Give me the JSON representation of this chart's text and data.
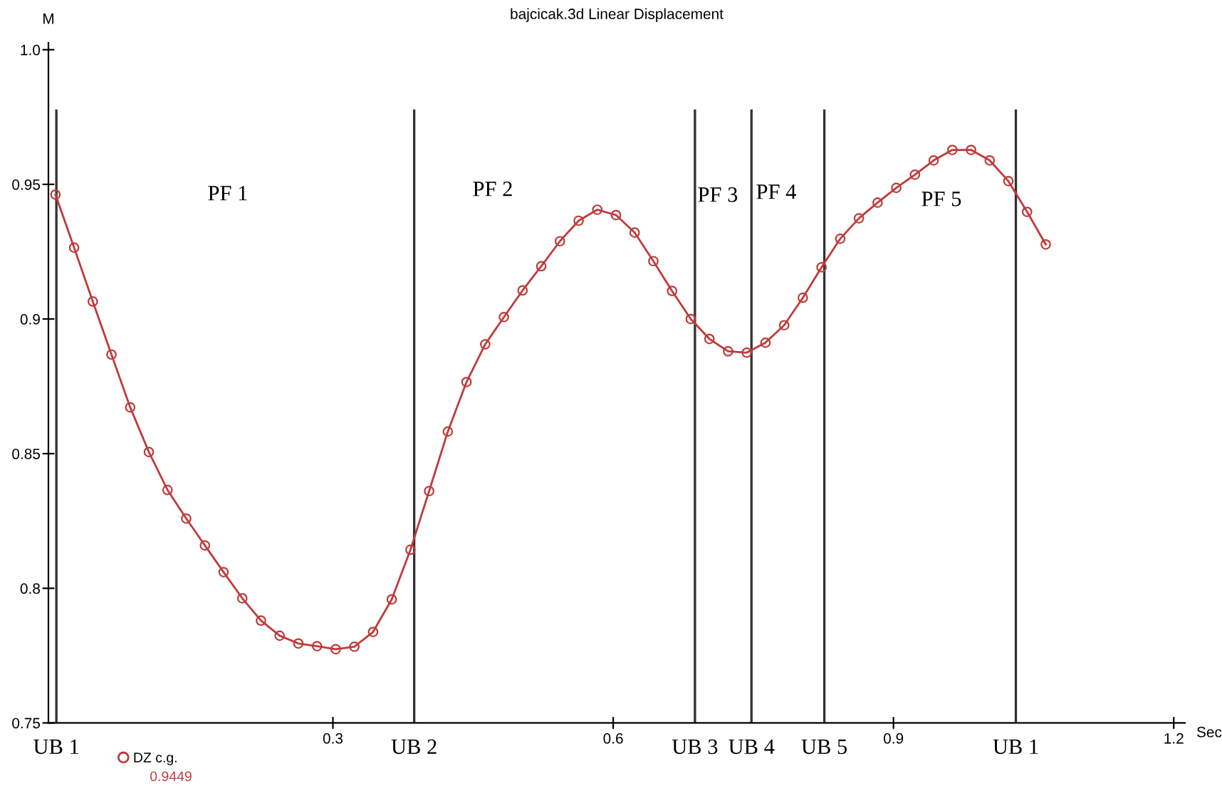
{
  "chart_data": {
    "type": "line",
    "title": "bajcicak.3d Linear Displacement",
    "xlabel": "Sec",
    "ylabel": "M",
    "xlim": [
      -0.0045,
      1.212
    ],
    "ylim": [
      0.75,
      1.0026
    ],
    "xticks": [
      0.3,
      0.6,
      0.9,
      1.2
    ],
    "yticks": [
      0.75,
      0.8,
      0.85,
      0.9,
      0.95,
      {
        "value": 1.0,
        "label": "1.0"
      }
    ],
    "marker": "circle",
    "line_style": "solid",
    "grid": false,
    "legend": "bottom left",
    "series": [
      {
        "name": "DZ c.g.",
        "color": "#c03a3a",
        "x": [
          0.003,
          0.023,
          0.043,
          0.063,
          0.083,
          0.103,
          0.123,
          0.143,
          0.163,
          0.183,
          0.203,
          0.223,
          0.243,
          0.263,
          0.283,
          0.303,
          0.323,
          0.343,
          0.363,
          0.383,
          0.403,
          0.423,
          0.443,
          0.463,
          0.483,
          0.503,
          0.523,
          0.543,
          0.563,
          0.583,
          0.603,
          0.623,
          0.643,
          0.663,
          0.683,
          0.703,
          0.723,
          0.743,
          0.763,
          0.783,
          0.803,
          0.823,
          0.843,
          0.863,
          0.883,
          0.903,
          0.923,
          0.943,
          0.963,
          0.983,
          1.003,
          1.023,
          1.043,
          1.063
        ],
        "values": [
          0.9462,
          0.9265,
          0.9065,
          0.8868,
          0.8672,
          0.8506,
          0.8365,
          0.8259,
          0.8159,
          0.806,
          0.7963,
          0.788,
          0.7824,
          0.7795,
          0.7785,
          0.7774,
          0.7783,
          0.7838,
          0.7959,
          0.8143,
          0.8361,
          0.8582,
          0.8766,
          0.8906,
          0.9007,
          0.9106,
          0.9196,
          0.9289,
          0.9365,
          0.9406,
          0.9386,
          0.9321,
          0.9215,
          0.9104,
          0.9,
          0.8926,
          0.888,
          0.8875,
          0.8912,
          0.8977,
          0.9079,
          0.9192,
          0.9298,
          0.9374,
          0.9432,
          0.9487,
          0.9536,
          0.9589,
          0.9628,
          0.9628,
          0.9589,
          0.9512,
          0.9398,
          0.9277
        ]
      }
    ],
    "ref_lines": [
      {
        "axis": "x",
        "value": 0.004,
        "label": "UB 1",
        "color": "#333333",
        "line_style": "solid"
      },
      {
        "axis": "x",
        "value": 0.387,
        "label": "UB 2",
        "color": "#333333",
        "line_style": "solid"
      },
      {
        "axis": "x",
        "value": 0.6875,
        "label": "UB 3",
        "color": "#333333",
        "line_style": "solid"
      },
      {
        "axis": "x",
        "value": 0.748,
        "label": "UB 4",
        "color": "#333333",
        "line_style": "solid"
      },
      {
        "axis": "x",
        "value": 0.826,
        "label": "UB 5",
        "color": "#333333",
        "line_style": "solid"
      },
      {
        "axis": "x",
        "value": 1.031,
        "label": "UB 1",
        "color": "#333333",
        "line_style": "solid"
      }
    ],
    "annotations": [
      "PF 1",
      "PF 2",
      "PF 3",
      "PF 4",
      "PF 5",
      "0.9449"
    ]
  }
}
